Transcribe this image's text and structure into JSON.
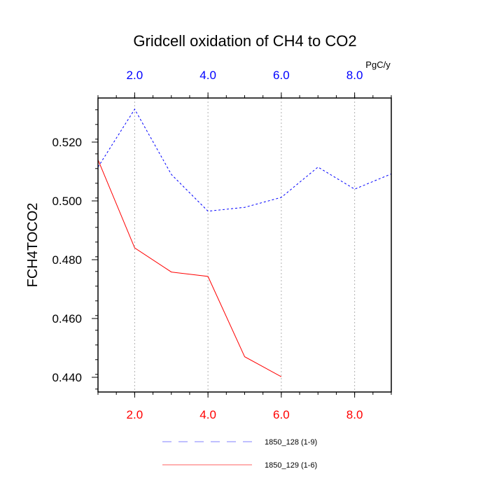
{
  "chart_data": {
    "type": "line",
    "title": "Gridcell oxidation of CH4 to CO2",
    "ylabel": "FCH4TOCO2",
    "top_axis_label": "PgC/y",
    "xlim": [
      1,
      9
    ],
    "ylim": [
      0.435,
      0.535
    ],
    "x_ticks": [
      2,
      4,
      6,
      8
    ],
    "x_tick_labels": [
      "2.0",
      "4.0",
      "6.0",
      "8.0"
    ],
    "y_ticks": [
      0.44,
      0.46,
      0.48,
      0.5,
      0.52
    ],
    "y_tick_labels": [
      "0.440",
      "0.460",
      "0.480",
      "0.500",
      "0.520"
    ],
    "series": [
      {
        "name": "1850_128 (1-9)",
        "color": "#0000ff",
        "style": "dashed",
        "x": [
          1,
          2,
          3,
          4,
          5,
          6,
          7,
          8,
          9
        ],
        "values": [
          0.5115,
          0.5312,
          0.509,
          0.4965,
          0.4978,
          0.5012,
          0.5115,
          0.504,
          0.5092
        ]
      },
      {
        "name": "1850_129 (1-6)",
        "color": "#ff0000",
        "style": "solid",
        "x": [
          1,
          2,
          3,
          4,
          5,
          6
        ],
        "values": [
          0.514,
          0.484,
          0.4758,
          0.4743,
          0.447,
          0.4402
        ]
      }
    ],
    "bottom_tick_color": "#ff0000",
    "top_tick_color": "#0000ff",
    "grid": "vertical-dotted"
  }
}
